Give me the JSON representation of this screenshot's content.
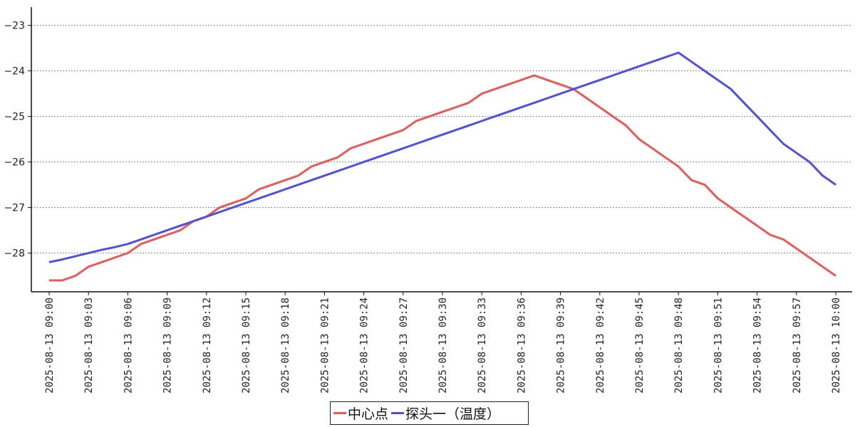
{
  "chart_data": {
    "type": "line",
    "title": "",
    "xlabel": "",
    "ylabel": "",
    "ylim": [
      -28.85,
      -22.6
    ],
    "yticks": [
      -23,
      -24,
      -25,
      -26,
      -27,
      -28
    ],
    "grid": "horizontal dotted",
    "legend_position": "bottom-center",
    "x_tick_labels": [
      "2025-08-13 09:00",
      "2025-08-13 09:03",
      "2025-08-13 09:06",
      "2025-08-13 09:09",
      "2025-08-13 09:12",
      "2025-08-13 09:15",
      "2025-08-13 09:18",
      "2025-08-13 09:21",
      "2025-08-13 09:24",
      "2025-08-13 09:27",
      "2025-08-13 09:30",
      "2025-08-13 09:33",
      "2025-08-13 09:36",
      "2025-08-13 09:39",
      "2025-08-13 09:42",
      "2025-08-13 09:45",
      "2025-08-13 09:48",
      "2025-08-13 09:51",
      "2025-08-13 09:54",
      "2025-08-13 09:57",
      "2025-08-13 10:00"
    ],
    "x": [
      "09:00",
      "09:01",
      "09:02",
      "09:03",
      "09:04",
      "09:05",
      "09:06",
      "09:07",
      "09:08",
      "09:09",
      "09:10",
      "09:11",
      "09:12",
      "09:13",
      "09:14",
      "09:15",
      "09:16",
      "09:17",
      "09:18",
      "09:19",
      "09:20",
      "09:21",
      "09:22",
      "09:23",
      "09:24",
      "09:25",
      "09:26",
      "09:27",
      "09:28",
      "09:29",
      "09:30",
      "09:31",
      "09:32",
      "09:33",
      "09:34",
      "09:35",
      "09:36",
      "09:37",
      "09:38",
      "09:39",
      "09:40",
      "09:41",
      "09:42",
      "09:43",
      "09:44",
      "09:45",
      "09:46",
      "09:47",
      "09:48",
      "09:49",
      "09:50",
      "09:51",
      "09:52",
      "09:53",
      "09:54",
      "09:55",
      "09:56",
      "09:57",
      "09:58",
      "09:59",
      "10:00"
    ],
    "series": [
      {
        "name": "中心点",
        "color": "#e85a5a",
        "values": [
          -28.6,
          -28.6,
          -28.5,
          -28.3,
          -28.2,
          -28.1,
          -28.0,
          -27.8,
          -27.7,
          -27.6,
          -27.5,
          -27.3,
          -27.2,
          -27.0,
          -26.9,
          -26.8,
          -26.6,
          -26.5,
          -26.4,
          -26.3,
          -26.1,
          -26.0,
          -25.9,
          -25.7,
          -25.6,
          -25.5,
          -25.4,
          -25.3,
          -25.1,
          -25.0,
          -24.9,
          -24.8,
          -24.7,
          -24.5,
          -24.4,
          -24.3,
          -24.2,
          -24.1,
          -24.2,
          -24.3,
          -24.4,
          -24.6,
          -24.8,
          -25.0,
          -25.2,
          -25.5,
          -25.7,
          -25.9,
          -26.1,
          -26.4,
          -26.5,
          -26.8,
          -27.0,
          -27.2,
          -27.4,
          -27.6,
          -27.7,
          -27.9,
          -28.1,
          -28.3,
          -28.5
        ]
      },
      {
        "name": "探头一（温度）",
        "color": "#5050e0",
        "values": [
          -28.2,
          -28.14,
          -28.07,
          -28.0,
          -27.93,
          -27.87,
          -27.8,
          -27.7,
          -27.6,
          -27.5,
          -27.4,
          -27.3,
          -27.2,
          -27.1,
          -27.0,
          -26.9,
          -26.8,
          -26.7,
          -26.6,
          -26.5,
          -26.4,
          -26.3,
          -26.2,
          -26.1,
          -26.0,
          -25.9,
          -25.8,
          -25.7,
          -25.6,
          -25.5,
          -25.4,
          -25.3,
          -25.2,
          -25.1,
          -25.0,
          -24.9,
          -24.8,
          -24.7,
          -24.6,
          -24.5,
          -24.4,
          -24.3,
          -24.2,
          -24.1,
          -24.0,
          -23.9,
          -23.8,
          -23.7,
          -23.6,
          -23.8,
          -24.0,
          -24.2,
          -24.4,
          -24.7,
          -25.0,
          -25.3,
          -25.6,
          -25.8,
          -26.0,
          -26.3,
          -26.5
        ]
      }
    ]
  }
}
